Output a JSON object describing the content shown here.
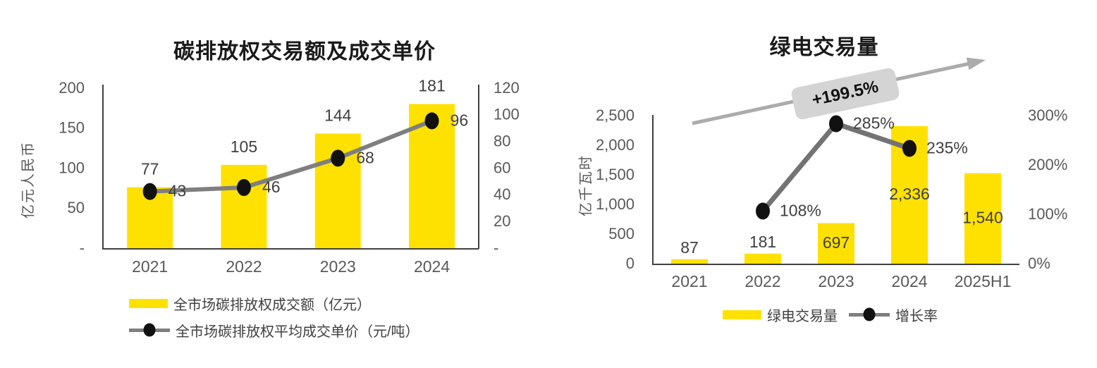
{
  "figure": {
    "background": "#ffffff"
  },
  "colors": {
    "bar_yellow": "#ffe100",
    "axis_line": "#404040",
    "tick_gray": "#595959",
    "data_label_dark": "#3f3f3f",
    "title_black": "#1a1a1a",
    "marker_black": "#111111",
    "arrow_gray": "#ababab",
    "annotation_bg": "#d4d4d4"
  },
  "chart_data": [
    {
      "type": "bar+line",
      "title": "碳排放权交易额及成交单价",
      "categories": [
        "2021",
        "2022",
        "2023",
        "2024"
      ],
      "series": [
        {
          "name": "全市场碳排放权成交额（亿元）",
          "type": "bar",
          "axis": "left",
          "values": [
            77,
            105,
            144,
            181
          ],
          "labels": [
            "77",
            "105",
            "144",
            "181"
          ],
          "label_placement": [
            "above",
            "above",
            "above",
            "above"
          ]
        },
        {
          "name": "全市场碳排放权平均成交单价（元/吨）",
          "type": "line",
          "axis": "right",
          "values": [
            43,
            46,
            68,
            96
          ],
          "labels": [
            "43",
            "46",
            "68",
            "96"
          ],
          "color": "#7f7f7f"
        }
      ],
      "left_axis": {
        "label": "亿元人民币",
        "min": 0,
        "max": 200,
        "tick_labels": [
          "-",
          "50",
          "100",
          "150",
          "200"
        ],
        "tick_values": [
          0,
          50,
          100,
          150,
          200
        ]
      },
      "right_axis": {
        "min": 0,
        "max": 120,
        "tick_labels": [
          "-",
          "20",
          "40",
          "60",
          "80",
          "100",
          "120"
        ],
        "tick_values": [
          0,
          20,
          40,
          60,
          80,
          100,
          120
        ]
      },
      "legend_position": "bottom-left",
      "grid": false
    },
    {
      "type": "bar+line",
      "title": "绿电交易量",
      "categories": [
        "2021",
        "2022",
        "2023",
        "2024",
        "2025H1"
      ],
      "series": [
        {
          "name": "绿电交易量",
          "type": "bar",
          "axis": "left",
          "values": [
            87,
            181,
            697,
            2336,
            1540
          ],
          "labels": [
            "87",
            "181",
            "697",
            "2,336",
            "1,540"
          ],
          "label_placement": [
            "above",
            "above",
            "inside",
            "inside",
            "inside"
          ]
        },
        {
          "name": "增长率",
          "type": "line",
          "axis": "right",
          "values": [
            null,
            108,
            285,
            235,
            null
          ],
          "labels": [
            "",
            "108%",
            "285%",
            "235%",
            ""
          ],
          "color": "#737373"
        }
      ],
      "left_axis": {
        "label": "亿千瓦时",
        "min": 0,
        "max": 2500,
        "tick_labels": [
          "0",
          "500",
          "1,000",
          "1,500",
          "2,000",
          "2,500"
        ],
        "tick_values": [
          0,
          500,
          1000,
          1500,
          2000,
          2500
        ]
      },
      "right_axis": {
        "min": 0,
        "max": 300,
        "tick_labels": [
          "0%",
          "100%",
          "200%",
          "300%"
        ],
        "tick_values": [
          0,
          100,
          200,
          300
        ]
      },
      "annotation": {
        "text": "+199.5%"
      },
      "legend_position": "bottom-center",
      "grid": false
    }
  ]
}
